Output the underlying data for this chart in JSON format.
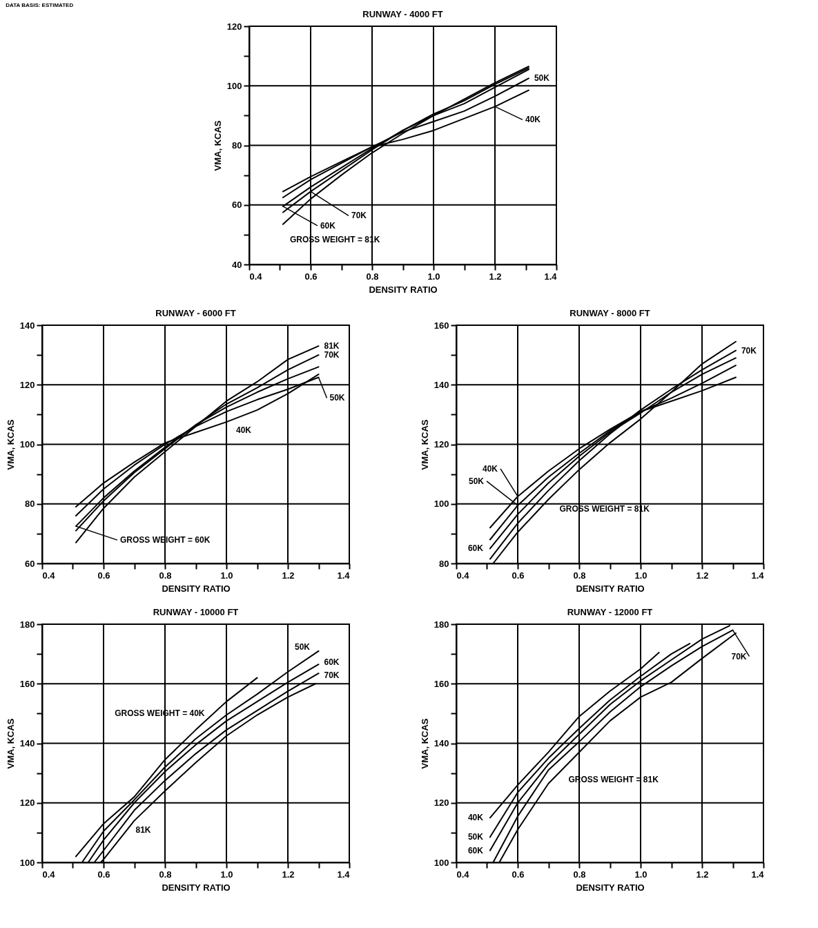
{
  "chart_data": [
    {
      "type": "line",
      "title": "RUNWAY - 4000 FT",
      "xlabel": "DENSITY RATIO",
      "ylabel": "VMA, KCAS",
      "annotations": [
        "DATA BASIS: ESTIMATED"
      ],
      "xlim": [
        0.4,
        1.4
      ],
      "ylim": [
        40,
        120
      ],
      "xticks": [
        0.4,
        {
          "value": 0.5,
          "label": null
        },
        0.6,
        {
          "value": 0.7,
          "label": null
        },
        0.8,
        {
          "value": 0.9,
          "label": null
        },
        {
          "value": 1,
          "label": "1.0"
        },
        {
          "value": 1.1,
          "label": null
        },
        1.2,
        {
          "value": 1.3,
          "label": null
        },
        1.4
      ],
      "yticks": [
        40,
        {
          "value": 50,
          "label": null
        },
        60,
        {
          "value": 70,
          "label": null
        },
        80,
        {
          "value": 90,
          "label": null
        },
        100,
        {
          "value": 110,
          "label": null
        },
        120
      ],
      "grid": true,
      "series": [
        {
          "name": "40K",
          "color": "#000000",
          "x": [
            0.51,
            0.6,
            0.7,
            0.8,
            0.9,
            1,
            1.1,
            1.2,
            1.31
          ],
          "values": [
            64.5,
            69.5,
            74.5,
            79.5,
            82,
            85,
            89,
            93,
            98.5
          ]
        },
        {
          "name": "50K",
          "color": "#000000",
          "x": [
            0.51,
            0.6,
            0.7,
            0.8,
            0.9,
            1,
            1.1,
            1.2,
            1.31
          ],
          "values": [
            62.5,
            68.5,
            74,
            79.5,
            84.5,
            88,
            91.5,
            96.5,
            102.5
          ]
        },
        {
          "name": "60K",
          "color": "#000000",
          "x": [
            0.51,
            0.6,
            0.7,
            0.8,
            0.9,
            1,
            1.1,
            1.2,
            1.31
          ],
          "values": [
            59.5,
            66,
            72.5,
            79,
            85,
            90,
            94,
            99.5,
            105.5
          ]
        },
        {
          "name": "70K",
          "color": "#000000",
          "x": [
            0.51,
            0.6,
            0.7,
            0.8,
            0.9,
            1,
            1.1,
            1.2,
            1.31
          ],
          "values": [
            57.5,
            64.5,
            71.5,
            78.5,
            85,
            90.5,
            95,
            100.5,
            106
          ]
        },
        {
          "name": "GROSS WEIGHT = 81K",
          "color": "#000000",
          "x": [
            0.51,
            0.6,
            0.7,
            0.8,
            0.9,
            1,
            1.1,
            1.2,
            1.31
          ],
          "values": [
            53.5,
            62,
            70,
            77.5,
            84,
            90,
            95.5,
            101,
            106.5
          ]
        }
      ]
    },
    {
      "type": "line",
      "title": "RUNWAY - 6000 FT",
      "xlabel": "DENSITY RATIO",
      "ylabel": "VMA, KCAS",
      "xlim": [
        0.4,
        1.4
      ],
      "ylim": [
        60,
        140
      ],
      "xticks": [
        0.4,
        {
          "value": 0.5,
          "label": null
        },
        0.6,
        {
          "value": 0.7,
          "label": null
        },
        0.8,
        {
          "value": 0.9,
          "label": null
        },
        {
          "value": 1,
          "label": "1.0"
        },
        {
          "value": 1.1,
          "label": null
        },
        1.2,
        {
          "value": 1.3,
          "label": null
        },
        1.4
      ],
      "yticks": [
        60,
        {
          "value": 70,
          "label": null
        },
        80,
        {
          "value": 90,
          "label": null
        },
        100,
        {
          "value": 110,
          "label": null
        },
        120,
        {
          "value": 130,
          "label": null
        },
        140
      ],
      "grid": true,
      "series": [
        {
          "name": "40K",
          "color": "#000000",
          "x": [
            0.51,
            0.6,
            0.7,
            0.8,
            0.9,
            1,
            1.1,
            1.2,
            1.3
          ],
          "values": [
            79,
            87,
            94,
            100.5,
            104,
            107.5,
            111.5,
            117,
            123.5
          ]
        },
        {
          "name": "50K",
          "color": "#000000",
          "x": [
            0.51,
            0.6,
            0.7,
            0.8,
            0.9,
            1,
            1.1,
            1.2,
            1.3
          ],
          "values": [
            76,
            85,
            93,
            100,
            106,
            111,
            115,
            118.5,
            122.5
          ]
        },
        {
          "name": "GROSS WEIGHT = 60K",
          "color": "#000000",
          "x": [
            0.51,
            0.6,
            0.7,
            0.8,
            0.9,
            1,
            1.1,
            1.2,
            1.3
          ],
          "values": [
            72.5,
            82,
            91,
            99,
            106.5,
            112.5,
            117.5,
            122,
            126
          ]
        },
        {
          "name": "70K",
          "color": "#000000",
          "x": [
            0.51,
            0.6,
            0.7,
            0.8,
            0.9,
            1,
            1.1,
            1.2,
            1.3
          ],
          "values": [
            71,
            81,
            90.5,
            98.5,
            106.5,
            113.5,
            119,
            125,
            130
          ]
        },
        {
          "name": "81K",
          "color": "#000000",
          "x": [
            0.51,
            0.6,
            0.7,
            0.8,
            0.9,
            1,
            1.1,
            1.2,
            1.3
          ],
          "values": [
            67,
            78.5,
            89,
            97.5,
            106,
            114.5,
            121,
            128.5,
            133
          ]
        }
      ]
    },
    {
      "type": "line",
      "title": "RUNWAY - 8000 FT",
      "xlabel": "DENSITY RATIO",
      "ylabel": "VMA, KCAS",
      "xlim": [
        0.4,
        1.4
      ],
      "ylim": [
        80,
        160
      ],
      "xticks": [
        0.4,
        {
          "value": 0.5,
          "label": null
        },
        0.6,
        {
          "value": 0.7,
          "label": null
        },
        0.8,
        {
          "value": 0.9,
          "label": null
        },
        {
          "value": 1,
          "label": "1.0"
        },
        {
          "value": 1.1,
          "label": null
        },
        1.2,
        {
          "value": 1.3,
          "label": null
        },
        1.4
      ],
      "yticks": [
        80,
        {
          "value": 90,
          "label": null
        },
        100,
        {
          "value": 110,
          "label": null
        },
        120,
        {
          "value": 130,
          "label": null
        },
        140,
        {
          "value": 150,
          "label": null
        },
        160
      ],
      "grid": true,
      "series": [
        {
          "name": "40K",
          "color": "#000000",
          "x": [
            0.51,
            0.6,
            0.7,
            0.8,
            0.9,
            1,
            1.1,
            1.2,
            1.31
          ],
          "values": [
            92,
            102.5,
            111,
            118.5,
            125,
            131,
            134.5,
            138,
            142.5
          ]
        },
        {
          "name": "50K",
          "color": "#000000",
          "x": [
            0.51,
            0.6,
            0.7,
            0.8,
            0.9,
            1,
            1.1,
            1.2,
            1.31
          ],
          "values": [
            88,
            99.5,
            109,
            117,
            124.5,
            131,
            135.5,
            140.5,
            146.5
          ]
        },
        {
          "name": "60K",
          "color": "#000000",
          "x": [
            0.51,
            0.6,
            0.7,
            0.8,
            0.9,
            1,
            1.1,
            1.2,
            1.31
          ],
          "values": [
            85,
            96.5,
            107,
            116,
            124,
            130.5,
            137.5,
            143.5,
            149
          ]
        },
        {
          "name": "70K",
          "color": "#000000",
          "x": [
            0.51,
            0.6,
            0.7,
            0.8,
            0.9,
            1,
            1.1,
            1.2,
            1.31
          ],
          "values": [
            81.5,
            93.5,
            104.5,
            114.5,
            123.5,
            131.5,
            138.5,
            145,
            151.5
          ]
        },
        {
          "name": "GROSS WEIGHT = 81K",
          "color": "#000000",
          "x": [
            0.52,
            0.6,
            0.7,
            0.8,
            0.9,
            1,
            1.1,
            1.2,
            1.31
          ],
          "values": [
            80,
            90.5,
            101.5,
            111.5,
            120.5,
            128.5,
            137.5,
            147,
            154.5
          ]
        }
      ]
    },
    {
      "type": "line",
      "title": "RUNWAY - 10000 FT",
      "xlabel": "DENSITY RATIO",
      "ylabel": "VMA, KCAS",
      "xlim": [
        0.4,
        1.4
      ],
      "ylim": [
        100,
        180
      ],
      "xticks": [
        0.4,
        {
          "value": 0.5,
          "label": null
        },
        0.6,
        {
          "value": 0.7,
          "label": null
        },
        0.8,
        {
          "value": 0.9,
          "label": null
        },
        {
          "value": 1,
          "label": "1.0"
        },
        {
          "value": 1.1,
          "label": null
        },
        1.2,
        {
          "value": 1.3,
          "label": null
        },
        1.4
      ],
      "yticks": [
        100,
        {
          "value": 110,
          "label": null
        },
        120,
        {
          "value": 130,
          "label": null
        },
        140,
        {
          "value": 150,
          "label": null
        },
        160,
        {
          "value": 170,
          "label": null
        },
        180
      ],
      "grid": true,
      "series": [
        {
          "name": "GROSS WEIGHT = 40K",
          "color": "#000000",
          "x": [
            0.51,
            0.6,
            0.7,
            0.8,
            0.9,
            1,
            1.1
          ],
          "values": [
            102,
            113,
            122,
            134.5,
            144.5,
            154,
            162
          ]
        },
        {
          "name": "50K",
          "color": "#000000",
          "x": [
            0.53,
            0.6,
            0.7,
            0.8,
            0.9,
            1,
            1.1,
            1.2,
            1.3
          ],
          "values": [
            100,
            110.5,
            121,
            132,
            141.5,
            149.5,
            156.5,
            164,
            171
          ]
        },
        {
          "name": "60K",
          "color": "#000000",
          "x": [
            0.55,
            0.6,
            0.7,
            0.8,
            0.9,
            1,
            1.1,
            1.2,
            1.3
          ],
          "values": [
            100,
            107.5,
            120,
            130.5,
            139.5,
            147.5,
            154,
            160.5,
            166.5
          ]
        },
        {
          "name": "70K",
          "color": "#000000",
          "x": [
            0.57,
            0.6,
            0.7,
            0.8,
            0.9,
            1,
            1.1,
            1.2,
            1.3
          ],
          "values": [
            100,
            104,
            117.5,
            127.5,
            136.5,
            144.5,
            151,
            157.5,
            163.5
          ]
        },
        {
          "name": "81K",
          "color": "#000000",
          "x": [
            0.59,
            0.6,
            0.7,
            0.8,
            0.9,
            1,
            1.1,
            1.2,
            1.29
          ],
          "values": [
            100,
            101,
            114,
            124,
            133.5,
            142.5,
            149.5,
            155.5,
            160
          ]
        }
      ]
    },
    {
      "type": "line",
      "title": "RUNWAY - 12000 FT",
      "xlabel": "DENSITY RATIO",
      "ylabel": "VMA, KCAS",
      "xlim": [
        0.4,
        1.4
      ],
      "ylim": [
        100,
        180
      ],
      "xticks": [
        0.4,
        {
          "value": 0.5,
          "label": null
        },
        0.6,
        {
          "value": 0.7,
          "label": null
        },
        0.8,
        {
          "value": 0.9,
          "label": null
        },
        {
          "value": 1,
          "label": "1.0"
        },
        {
          "value": 1.1,
          "label": null
        },
        1.2,
        {
          "value": 1.3,
          "label": null
        },
        1.4
      ],
      "yticks": [
        100,
        {
          "value": 110,
          "label": null
        },
        120,
        {
          "value": 130,
          "label": null
        },
        140,
        {
          "value": 150,
          "label": null
        },
        160,
        {
          "value": 170,
          "label": null
        },
        180
      ],
      "grid": true,
      "series": [
        {
          "name": "40K",
          "color": "#000000",
          "x": [
            0.51,
            0.6,
            0.7,
            0.8,
            0.9,
            1,
            1.06
          ],
          "values": [
            115,
            126,
            137,
            149,
            157.5,
            165,
            170.5
          ]
        },
        {
          "name": "50K",
          "color": "#000000",
          "x": [
            0.51,
            0.6,
            0.7,
            0.8,
            0.9,
            1,
            1.1,
            1.16
          ],
          "values": [
            108.5,
            123.5,
            135,
            145,
            154.5,
            162.5,
            170,
            173.5
          ]
        },
        {
          "name": "60K",
          "color": "#000000",
          "x": [
            0.51,
            0.6,
            0.7,
            0.8,
            0.9,
            1,
            1.1,
            1.2,
            1.29
          ],
          "values": [
            104,
            120,
            133,
            143,
            153,
            161,
            168,
            175,
            179.5
          ]
        },
        {
          "name": "70K",
          "color": "#000000",
          "x": [
            0.52,
            0.6,
            0.7,
            0.8,
            0.9,
            1,
            1.1,
            1.2,
            1.3
          ],
          "values": [
            100,
            115.5,
            131,
            140.5,
            150.5,
            159,
            166,
            172.5,
            178
          ]
        },
        {
          "name": "GROSS WEIGHT = 81K",
          "color": "#000000",
          "x": [
            0.54,
            0.6,
            0.7,
            0.8,
            0.9,
            1,
            1.1,
            1.2,
            1.31
          ],
          "values": [
            100,
            111,
            126.5,
            137,
            147.5,
            155.5,
            160.5,
            168.5,
            177
          ]
        }
      ]
    }
  ]
}
